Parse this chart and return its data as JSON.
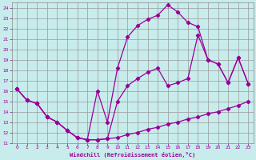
{
  "xlabel": "Windchill (Refroidissement éolien,°C)",
  "xlim": [
    -0.5,
    23.5
  ],
  "ylim": [
    11,
    24.5
  ],
  "xticks": [
    0,
    1,
    2,
    3,
    4,
    5,
    6,
    7,
    8,
    9,
    10,
    11,
    12,
    13,
    14,
    15,
    16,
    17,
    18,
    19,
    20,
    21,
    22,
    23
  ],
  "yticks": [
    11,
    12,
    13,
    14,
    15,
    16,
    17,
    18,
    19,
    20,
    21,
    22,
    23,
    24
  ],
  "bg_color": "#c8ecec",
  "grid_color": "#999999",
  "line_color": "#990099",
  "line1_x": [
    0,
    1,
    2,
    3,
    4,
    5,
    6,
    7,
    8,
    9,
    10,
    11,
    12,
    13,
    14,
    15,
    16,
    17,
    18,
    19,
    20,
    21,
    22,
    23
  ],
  "line1_y": [
    16.2,
    15.1,
    14.8,
    13.5,
    13.0,
    12.2,
    11.5,
    11.3,
    11.3,
    11.4,
    11.5,
    11.8,
    12.0,
    12.3,
    12.5,
    12.8,
    13.0,
    13.3,
    13.5,
    13.8,
    14.0,
    14.3,
    14.6,
    15.0
  ],
  "line2_x": [
    0,
    1,
    2,
    3,
    4,
    5,
    6,
    7,
    8,
    9,
    10,
    11,
    12,
    13,
    14,
    15,
    16,
    17,
    18,
    19,
    20,
    21,
    22,
    23
  ],
  "line2_y": [
    16.2,
    15.1,
    14.8,
    13.5,
    13.0,
    12.2,
    11.5,
    11.3,
    16.0,
    13.0,
    18.2,
    21.2,
    22.3,
    22.9,
    23.3,
    24.3,
    23.6,
    22.6,
    22.2,
    19.0,
    18.6,
    16.8,
    19.2,
    16.7
  ],
  "line3_x": [
    0,
    1,
    2,
    3,
    4,
    5,
    6,
    7,
    8,
    9,
    10,
    11,
    12,
    13,
    14,
    15,
    16,
    17,
    18,
    19,
    20,
    21,
    22,
    23
  ],
  "line3_y": [
    16.2,
    15.1,
    14.8,
    13.5,
    13.0,
    12.2,
    11.5,
    11.3,
    11.3,
    11.4,
    15.0,
    16.5,
    17.2,
    17.8,
    18.2,
    16.5,
    16.8,
    17.2,
    21.4,
    19.0,
    18.6,
    16.8,
    19.2,
    16.7
  ]
}
